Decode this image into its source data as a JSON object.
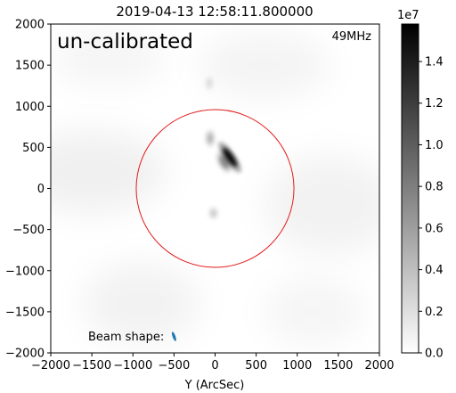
{
  "chart_data": {
    "type": "heatmap",
    "title": "2019-04-13 12:58:11.800000",
    "xlabel": "Y (ArcSec)",
    "ylabel": "",
    "xlim": [
      -2000,
      2000
    ],
    "ylim": [
      -2000,
      2000
    ],
    "x_ticks": [
      -2000,
      -1500,
      -1000,
      -500,
      0,
      500,
      1000,
      1500,
      2000
    ],
    "y_ticks": [
      -2000,
      -1500,
      -1000,
      -500,
      0,
      500,
      1000,
      1500,
      2000
    ],
    "x_tick_labels": [
      "−2000",
      "−1500",
      "−1000",
      "−500",
      "0",
      "500",
      "1000",
      "1500",
      "2000"
    ],
    "y_tick_labels": [
      "−2000",
      "−1500",
      "−1000",
      "−500",
      "0",
      "500",
      "1000",
      "1500",
      "2000"
    ],
    "grid": false,
    "colormap": "gray_r",
    "annotations": {
      "calibration_label": "un-calibrated",
      "calibration_color": "#1e9be9",
      "frequency_label": "49MHz",
      "beam_label": "Beam shape:",
      "beam_color": "#1f77b4"
    },
    "limb_circle": {
      "center": [
        0,
        0
      ],
      "radius": 960,
      "color": "#e31a1c"
    },
    "sources": [
      {
        "x": 180,
        "y": 380,
        "sx": 40,
        "sy": 140,
        "angle_deg": -35,
        "intensity": 15500000.0
      },
      {
        "x": 110,
        "y": 320,
        "sx": 45,
        "sy": 90,
        "angle_deg": -30,
        "intensity": 6000000.0
      },
      {
        "x": -60,
        "y": 610,
        "sx": 40,
        "sy": 70,
        "angle_deg": 0,
        "intensity": 3500000.0
      },
      {
        "x": -20,
        "y": -300,
        "sx": 40,
        "sy": 50,
        "angle_deg": 0,
        "intensity": 2500000.0
      },
      {
        "x": -70,
        "y": 1280,
        "sx": 35,
        "sy": 60,
        "angle_deg": 0,
        "intensity": 1500000.0
      }
    ],
    "beam": {
      "x": -500,
      "y": -1800,
      "sx": 18,
      "sy": 60,
      "angle_deg": -20
    },
    "colorbar": {
      "min": 0,
      "max": 15800000,
      "ticks": [
        0.0,
        0.2,
        0.4,
        0.6,
        0.8,
        1.0,
        1.2,
        1.4
      ],
      "tick_labels": [
        "0.0",
        "0.2",
        "0.4",
        "0.6",
        "0.8",
        "1.0",
        "1.2",
        "1.4"
      ],
      "exponent_label": "1e7"
    }
  }
}
